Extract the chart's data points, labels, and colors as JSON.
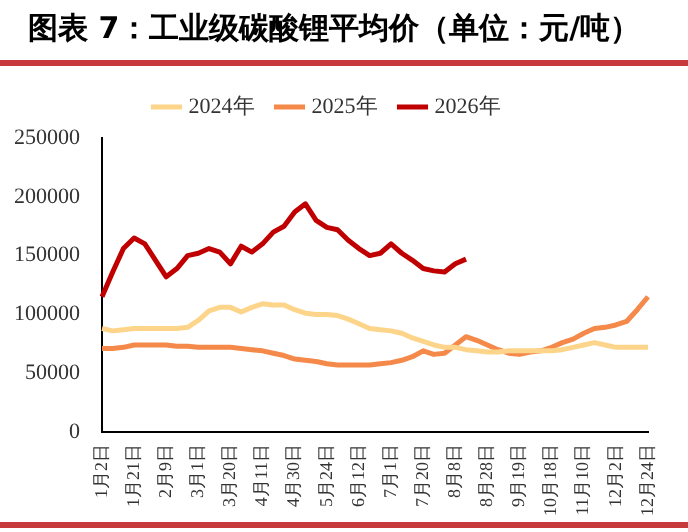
{
  "chart_data": {
    "type": "line",
    "title": "图表 7：工业级碳酸锂平均价（单位：元/吨）",
    "categories": [
      "1月2日",
      null,
      null,
      "1月21日",
      null,
      null,
      "2月9日",
      null,
      null,
      "3月1日",
      null,
      null,
      "3月20日",
      null,
      null,
      "4月11日",
      null,
      null,
      "4月30日",
      null,
      null,
      "5月24日",
      null,
      null,
      "6月12日",
      null,
      null,
      "7月1日",
      null,
      null,
      "7月20日",
      null,
      null,
      "8月8日",
      null,
      null,
      "8月28日",
      null,
      null,
      "9月19日",
      null,
      null,
      "10月18日",
      null,
      null,
      "11月10日",
      null,
      null,
      "12月2日",
      null,
      null,
      "12月24日"
    ],
    "series": [
      {
        "name": "2024年",
        "color": "#fdd58a",
        "values": [
          88000,
          86000,
          87000,
          88000,
          88000,
          88000,
          88000,
          88000,
          89000,
          95000,
          103000,
          106000,
          106000,
          102000,
          106000,
          109000,
          108000,
          108000,
          104000,
          101000,
          100000,
          100000,
          99000,
          96000,
          92000,
          88000,
          87000,
          86000,
          84000,
          80000,
          77000,
          74000,
          72000,
          72000,
          70000,
          69000,
          68000,
          68000,
          69000,
          69000,
          69000,
          69000,
          69000,
          70000,
          72000,
          74000,
          76000,
          74000,
          72000,
          72000,
          72000,
          72000
        ]
      },
      {
        "name": "2025年",
        "color": "#f4894a",
        "values": [
          71000,
          71000,
          72000,
          74000,
          74000,
          74000,
          74000,
          73000,
          73000,
          72000,
          72000,
          72000,
          72000,
          71000,
          70000,
          69000,
          67000,
          65000,
          62000,
          61000,
          60000,
          58000,
          57000,
          57000,
          57000,
          57000,
          58000,
          59000,
          61000,
          64000,
          69000,
          66000,
          67000,
          74000,
          81000,
          78000,
          74000,
          70000,
          67000,
          66000,
          68000,
          69000,
          72000,
          76000,
          79000,
          84000,
          88000,
          89000,
          91000,
          94000,
          104000,
          115000
        ]
      },
      {
        "name": "2026年",
        "color": "#c00000",
        "values": [
          115000,
          136000,
          156000,
          165000,
          160000,
          146000,
          132000,
          139000,
          150000,
          152000,
          156000,
          153000,
          143000,
          158000,
          153000,
          160000,
          170000,
          175000,
          187000,
          194000,
          180000,
          174000,
          172000,
          163000,
          156000,
          150000,
          152000,
          160000,
          152000,
          146000,
          139000,
          137000,
          136000,
          143000,
          147000,
          null,
          null,
          null,
          null,
          null,
          null,
          null,
          null,
          null,
          null,
          null,
          null,
          null,
          null,
          null,
          null,
          null
        ]
      }
    ],
    "ylim": [
      0,
      250000
    ],
    "yticks": [
      0,
      50000,
      100000,
      150000,
      200000,
      250000
    ],
    "grid": false,
    "legend": "top",
    "marker": "none",
    "line_style": "solid"
  }
}
